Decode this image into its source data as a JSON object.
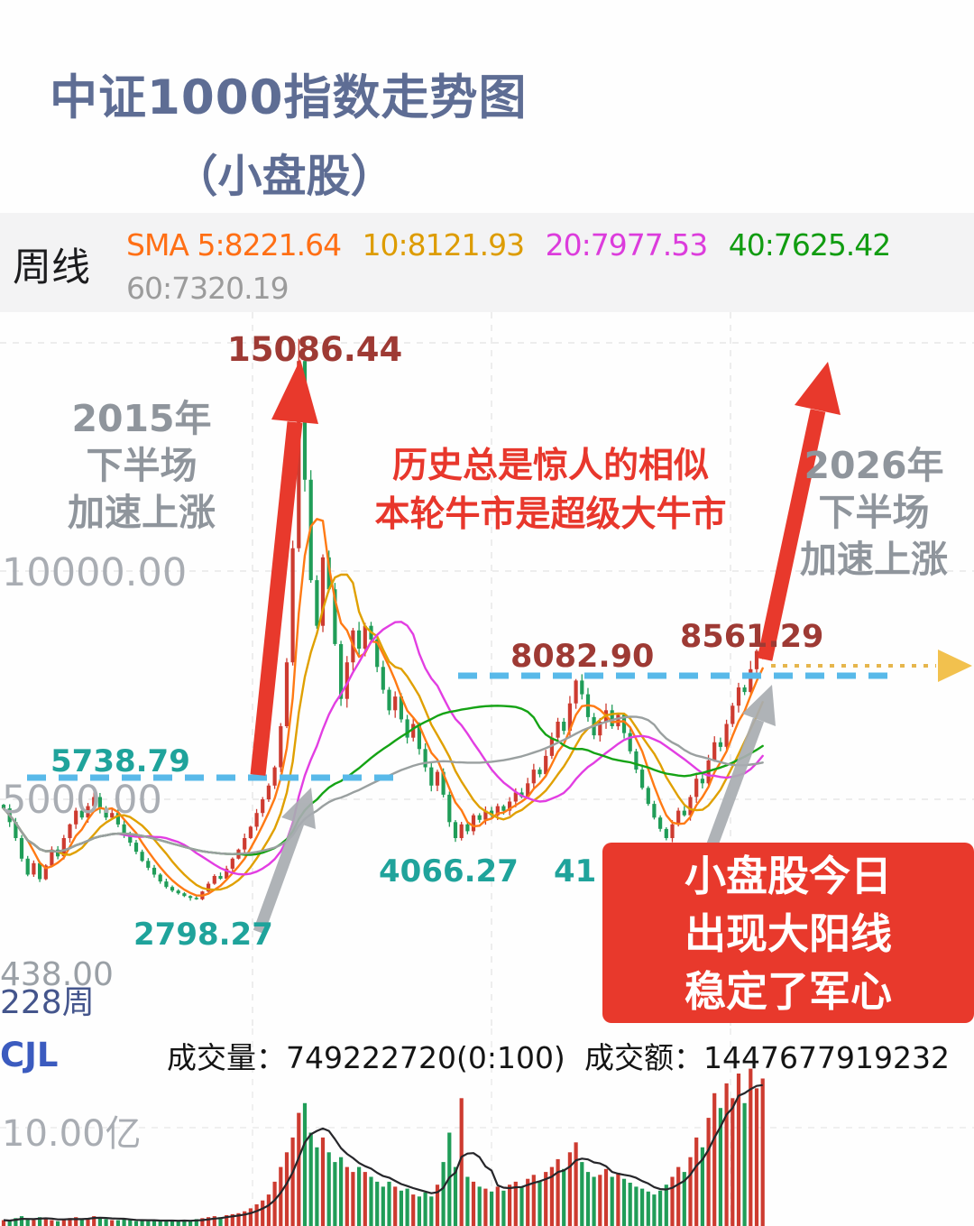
{
  "title": {
    "line1": "中证1000指数走势图",
    "line2": "（小盘股）"
  },
  "header": {
    "period": "周线",
    "sma": [
      {
        "label": "SMA 5:8221.64",
        "color": "#ff6f15"
      },
      {
        "label": "10:8121.93",
        "color": "#dd9c00"
      },
      {
        "label": "20:7977.53",
        "color": "#dc3cdc"
      },
      {
        "label": "40:7625.42",
        "color": "#119c11"
      }
    ],
    "sma2": {
      "label": "60:7320.19",
      "color": "#9b9b9b"
    }
  },
  "annotations": {
    "peak_label": "15086.44",
    "left_note": [
      "2015年",
      "下半场",
      "加速上涨"
    ],
    "center_note": [
      "历史总是惊人的相似",
      "本轮牛市是超级大牛市"
    ],
    "right_note": [
      "2026年",
      "下半场",
      "加速上涨"
    ],
    "support_label": "5738.79",
    "resistance_label": "8082.90",
    "recent_high_label": "8561.29",
    "low1_label": "2798.27",
    "low2_label": "4066.27",
    "low3_label_partial": "41",
    "axis_10000": "10000.00",
    "axis_5000": "5000.00",
    "bottom_left_a": "438.00",
    "bottom_left_b": "228周",
    "callout": [
      "小盘股今日",
      "出现大阳线",
      "稳定了军心"
    ]
  },
  "volume_pane": {
    "indicator": "CJL",
    "volume_text": "成交量：749222720(0:100)",
    "amount_text": "成交额：1447677919232",
    "axis_label": "10.00亿"
  },
  "colors": {
    "accent_red": "#e8392c",
    "dashed_blue": "#58b9e9",
    "projection_yellow": "#f2c14e",
    "teal_label": "#1fa39b",
    "dark_red_label": "#9e3a34",
    "title_blue": "#5e6d94",
    "gray_note": "#8f959c"
  },
  "chart_data": {
    "type": "candlestick",
    "period": "weekly",
    "title": "中证1000指数走势图（小盘股）周线",
    "ylim": [
      2500,
      15500
    ],
    "y_gridlines": [
      5000,
      10000,
      15000
    ],
    "peak": 15086.44,
    "recent_high": 8561.29,
    "support_level": 5738.79,
    "resistance_level": 8082.9,
    "lows": [
      2798.27,
      4066.27
    ],
    "ma_periods": [
      5,
      10,
      20,
      40,
      60
    ],
    "ma_colors": {
      "5": "#ff7a14",
      "10": "#e0a000",
      "20": "#e23ee2",
      "40": "#15a315",
      "60": "#9aa0a0"
    },
    "ma_values_latest": {
      "5": 8221.64,
      "10": 8121.93,
      "20": 7977.53,
      "40": 7625.42,
      "60": 7320.19
    },
    "colors": {
      "up": "#cd3b30",
      "down": "#209d58"
    },
    "closes": [
      4800,
      4500,
      4150,
      3700,
      3350,
      3600,
      3250,
      3550,
      3900,
      3750,
      4150,
      4450,
      4750,
      4600,
      4850,
      5050,
      4800,
      4600,
      4700,
      4450,
      4250,
      4050,
      3850,
      3650,
      3500,
      3350,
      3200,
      3080,
      3000,
      2940,
      2880,
      2840,
      2810,
      2980,
      3150,
      3320,
      3260,
      3480,
      3700,
      3900,
      4150,
      4400,
      4700,
      5000,
      5300,
      5700,
      6600,
      8000,
      10500,
      14600,
      12000,
      9800,
      8800,
      10300,
      9600,
      8400,
      7200,
      8000,
      8700,
      8300,
      8800,
      8500,
      7900,
      7400,
      6950,
      7250,
      6750,
      6350,
      6650,
      6100,
      5700,
      5300,
      5600,
      5100,
      4500,
      4150,
      4450,
      4300,
      4650,
      4550,
      4750,
      4650,
      4850,
      4750,
      4950,
      5150,
      5050,
      5350,
      5650,
      5550,
      5950,
      6350,
      6700,
      6500,
      7100,
      7600,
      7300,
      6800,
      6400,
      6700,
      6950,
      6600,
      6850,
      6450,
      6050,
      5650,
      5250,
      4900,
      4600,
      4350,
      4150,
      4450,
      4750,
      4650,
      5050,
      5450,
      5350,
      5850,
      6250,
      6150,
      6650,
      7050,
      7450,
      7350,
      7850,
      8250,
      8450
    ],
    "special_points": {
      "32": {
        "low": 2798.27
      },
      "49": {
        "high": 15086.44
      },
      "75": {
        "low": 4066.27
      },
      "110": {
        "low": 4100
      },
      "126": {
        "high": 8561.29
      }
    },
    "volumes": [
      0.6,
      0.5,
      0.8,
      1.0,
      0.7,
      0.6,
      0.9,
      0.7,
      0.6,
      0.5,
      0.7,
      0.8,
      0.9,
      0.7,
      0.8,
      1.0,
      0.8,
      0.7,
      0.6,
      0.6,
      0.7,
      0.6,
      0.5,
      0.6,
      0.5,
      0.6,
      0.5,
      0.6,
      0.5,
      0.5,
      0.6,
      0.5,
      0.7,
      0.8,
      0.9,
      1.0,
      0.9,
      1.1,
      1.2,
      1.3,
      1.5,
      1.8,
      2.2,
      2.6,
      3.2,
      4.5,
      6.0,
      7.5,
      9.0,
      11.5,
      12.5,
      9.5,
      8.0,
      9.0,
      7.5,
      6.5,
      7.0,
      6.0,
      5.5,
      6.0,
      5.5,
      5.0,
      4.5,
      4.0,
      4.5,
      4.0,
      3.6,
      3.8,
      3.2,
      3.0,
      3.4,
      3.0,
      4.2,
      6.5,
      9.5,
      6.0,
      13.0,
      5.0,
      4.5,
      4.0,
      3.8,
      3.5,
      4.0,
      3.6,
      4.2,
      4.5,
      4.0,
      4.8,
      5.2,
      4.6,
      5.5,
      6.0,
      6.8,
      5.8,
      7.5,
      8.5,
      6.5,
      5.5,
      5.0,
      5.2,
      5.8,
      5.0,
      5.4,
      4.8,
      4.4,
      4.0,
      3.8,
      3.5,
      3.2,
      3.6,
      4.2,
      5.0,
      6.0,
      5.5,
      7.0,
      9.0,
      8.0,
      11.0,
      13.5,
      12.0,
      14.5,
      13.0,
      15.5,
      12.5,
      16.0,
      14.0,
      15.0
    ],
    "volume_axis": {
      "label": "10.00亿",
      "value_yi": 10.0
    },
    "legend_position": "top",
    "grid": true
  }
}
